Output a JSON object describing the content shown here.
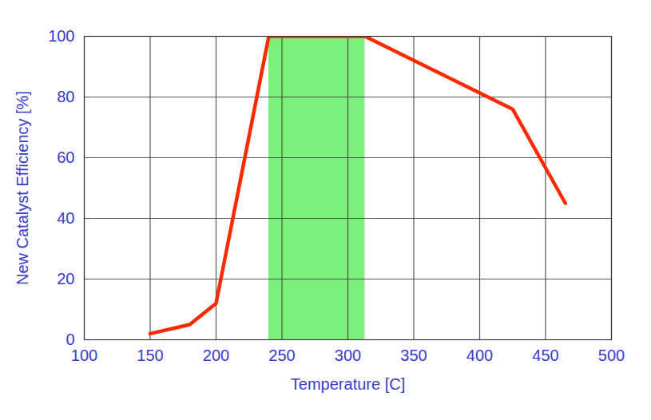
{
  "chart_data": {
    "type": "line",
    "x": [
      150,
      180,
      200,
      240,
      313,
      425,
      465
    ],
    "values": [
      2,
      5,
      12,
      100,
      100,
      76,
      45
    ],
    "color": "#ff2a00",
    "band": {
      "x": [
        240,
        313
      ]
    },
    "xlabel": "Temperature [C]",
    "ylabel": "New Catalyst Efficiency [%]",
    "xlim": [
      100,
      500
    ],
    "xticks": [
      100,
      150,
      200,
      250,
      300,
      350,
      400,
      450,
      500
    ],
    "ylim": [
      0,
      100
    ],
    "yticks": [
      0,
      20,
      40,
      60,
      80,
      100
    ],
    "grid": true
  }
}
